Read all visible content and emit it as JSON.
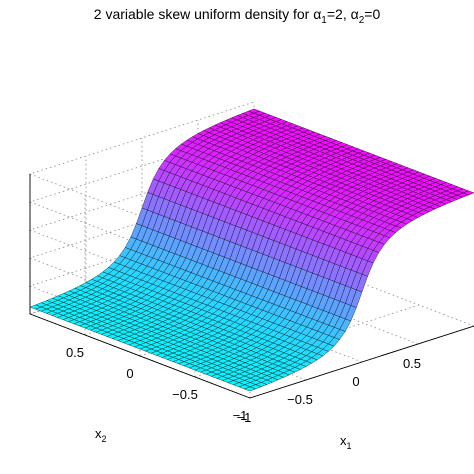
{
  "chart_data": {
    "type": "surface",
    "title": {
      "prefix": "2 variable skew uniform density for ",
      "param1_symbol": "α",
      "param1_sub": "1",
      "param1_value": "=2, ",
      "param2_symbol": "α",
      "param2_sub": "2",
      "param2_value": "=0"
    },
    "xlabel": {
      "base": "x",
      "sub": "1"
    },
    "ylabel": {
      "base": "x",
      "sub": "2"
    },
    "xlim": [
      -1,
      1
    ],
    "ylim": [
      -1,
      1
    ],
    "x_ticks": [
      "−1",
      "−0.5",
      "0",
      "0.5"
    ],
    "y_ticks": [
      "−1",
      "−0.5",
      "0",
      "0.5"
    ],
    "grid": true,
    "colormap": "cool",
    "colors": {
      "low": "#00ffff",
      "high": "#ff00ff",
      "edge": "#000000"
    },
    "surface": {
      "formula": "f(x1,x2) = 0.5 * (1 + (2/pi) * atan(alpha1 * x1 + alpha2 * x2)) normalized over [-1,1]^2 grid",
      "alpha1": 2,
      "alpha2": 0,
      "grid_n": 41
    }
  }
}
